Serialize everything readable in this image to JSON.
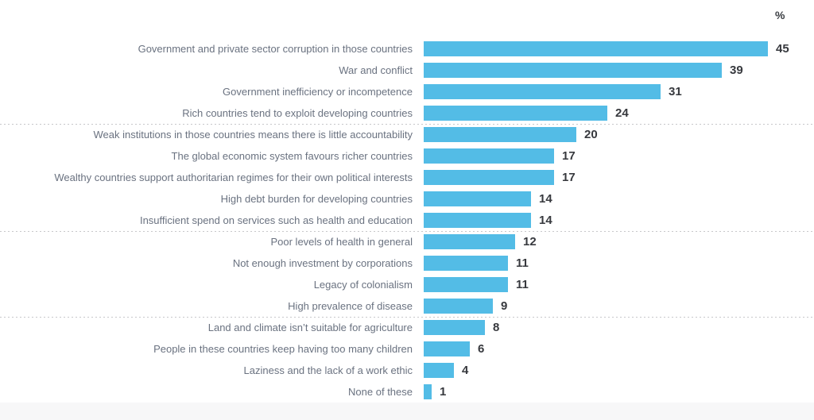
{
  "chart_data": {
    "type": "bar",
    "orientation": "horizontal",
    "title": "",
    "unit_label": "%",
    "xlim": [
      0,
      45
    ],
    "grid": false,
    "legend": false,
    "bar_color": "#53bce6",
    "label_color": "#6a7280",
    "value_color": "#37393e",
    "separator_style": "dotted",
    "categories": [
      "Government and private sector corruption in those countries",
      "War and conflict",
      "Government inefficiency or incompetence",
      "Rich countries tend to exploit developing countries",
      "Weak institutions in those countries means there is little accountability",
      "The global economic system favours richer countries",
      "Wealthy countries support authoritarian regimes for their own political interests",
      "High debt burden for developing countries",
      "Insufficient spend on services such as health and education",
      "Poor levels of health in general",
      "Not enough investment by corporations",
      "Legacy of colonialism",
      "High prevalence of disease",
      "Land and climate isn’t suitable for agriculture",
      "People in these countries keep having too many children",
      "Laziness and the lack of a work ethic",
      "None of these"
    ],
    "values": [
      45,
      39,
      31,
      24,
      20,
      17,
      17,
      14,
      14,
      12,
      11,
      11,
      9,
      8,
      6,
      4,
      1
    ],
    "groups": [
      {
        "rows": [
          {
            "label": "Government and private sector corruption in those countries",
            "value": 45
          },
          {
            "label": "War and conflict",
            "value": 39
          },
          {
            "label": "Government inefficiency or incompetence",
            "value": 31
          },
          {
            "label": "Rich countries tend to exploit developing countries",
            "value": 24
          }
        ]
      },
      {
        "rows": [
          {
            "label": "Weak institutions in those countries means there is little accountability",
            "value": 20
          },
          {
            "label": "The global economic system favours richer countries",
            "value": 17
          },
          {
            "label": "Wealthy countries support authoritarian regimes for their own political interests",
            "value": 17
          },
          {
            "label": "High debt burden for developing countries",
            "value": 14
          },
          {
            "label": "Insufficient spend on services such as health and education",
            "value": 14
          }
        ]
      },
      {
        "rows": [
          {
            "label": "Poor levels of health in general",
            "value": 12
          },
          {
            "label": "Not enough investment by corporations",
            "value": 11
          },
          {
            "label": "Legacy of colonialism",
            "value": 11
          },
          {
            "label": "High prevalence of disease",
            "value": 9
          }
        ]
      },
      {
        "rows": [
          {
            "label": "Land and climate isn’t suitable for agriculture",
            "value": 8
          },
          {
            "label": "People in these countries keep having too many children",
            "value": 6
          },
          {
            "label": "Laziness and the lack of a work ethic",
            "value": 4
          },
          {
            "label": "None of these",
            "value": 1
          }
        ]
      }
    ]
  }
}
